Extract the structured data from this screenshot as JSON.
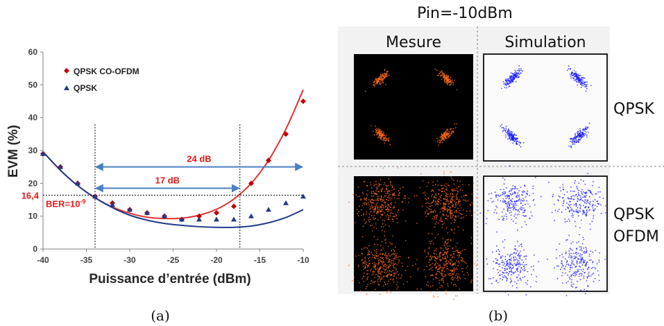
{
  "chart_data": [
    {
      "type": "line",
      "title": "",
      "xlabel": "Puissance d’entrée (dBm)",
      "ylabel": "EVM (%)",
      "xlim": [
        -40,
        -10
      ],
      "ylim": [
        0,
        60
      ],
      "xticks": [
        -40,
        -35,
        -30,
        -25,
        -20,
        -15,
        -10
      ],
      "yticks": [
        0,
        10,
        20,
        30,
        40,
        50,
        60
      ],
      "grid": false,
      "legend_position": "top-left",
      "series": [
        {
          "name": "QPSK CO-OFDM",
          "marker": "diamond",
          "color": "#c00000",
          "x": [
            -40,
            -38,
            -36,
            -34,
            -32,
            -30,
            -28,
            -26,
            -24,
            -22,
            -20,
            -18,
            -16,
            -14,
            -12,
            -10
          ],
          "y": [
            29,
            25,
            20,
            16,
            14,
            12,
            11,
            10,
            9,
            10,
            11,
            13,
            20,
            27,
            35,
            45
          ]
        },
        {
          "name": "QPSK",
          "marker": "triangle",
          "color": "#1f3a8a",
          "x": [
            -40,
            -38,
            -36,
            -34,
            -32,
            -30,
            -28,
            -26,
            -24,
            -22,
            -20,
            -18,
            -16,
            -14,
            -12,
            -10
          ],
          "y": [
            29,
            25,
            20,
            16,
            13.5,
            12,
            11,
            10,
            9,
            9,
            9,
            9,
            10,
            12,
            14,
            16
          ]
        }
      ],
      "fit_curves": [
        {
          "color": "#e03030",
          "x": [
            -40,
            -38,
            -36,
            -34,
            -32,
            -30,
            -28,
            -26,
            -24,
            -22,
            -20,
            -18,
            -16,
            -14,
            -12,
            -10
          ],
          "y": [
            29.6,
            24.0,
            19.3,
            15.6,
            12.8,
            10.9,
            9.7,
            9.3,
            9.4,
            10.3,
            12.1,
            15.2,
            20.0,
            27.0,
            36.5,
            48.5
          ]
        },
        {
          "color": "#1f3a8a",
          "x": [
            -40,
            -38,
            -36,
            -34,
            -32,
            -30,
            -28,
            -26,
            -24,
            -22,
            -20,
            -18,
            -16,
            -14,
            -12,
            -10
          ],
          "y": [
            29.6,
            24.0,
            19.3,
            15.6,
            12.6,
            10.3,
            8.8,
            7.8,
            7.2,
            6.8,
            6.6,
            6.6,
            7.0,
            8.0,
            9.6,
            12.0
          ]
        }
      ],
      "annotations": {
        "ber_level": {
          "y": 16.4,
          "y_label": "16,4",
          "label": "BER=10",
          "label_sup": "-9"
        },
        "vertical_guides": [
          -34,
          -17.3
        ],
        "span_24": {
          "x1": -34,
          "x2": -10,
          "y": 25,
          "label": "24 dB"
        },
        "span_17": {
          "x1": -34,
          "x2": -17.3,
          "y": 18.5,
          "label": "17 dB"
        }
      },
      "caption": "(a)"
    },
    {
      "type": "scatter",
      "title": "Pin=-10dBm",
      "columns": [
        "Mesure",
        "Simulation"
      ],
      "rows": [
        {
          "label": "QPSK",
          "label2": ""
        },
        {
          "label": "QPSK",
          "label2": "OFDM"
        }
      ],
      "colors": {
        "mesure": "#ff6a1a",
        "simulation": "#1a1aff"
      },
      "caption": "(b)"
    }
  ]
}
